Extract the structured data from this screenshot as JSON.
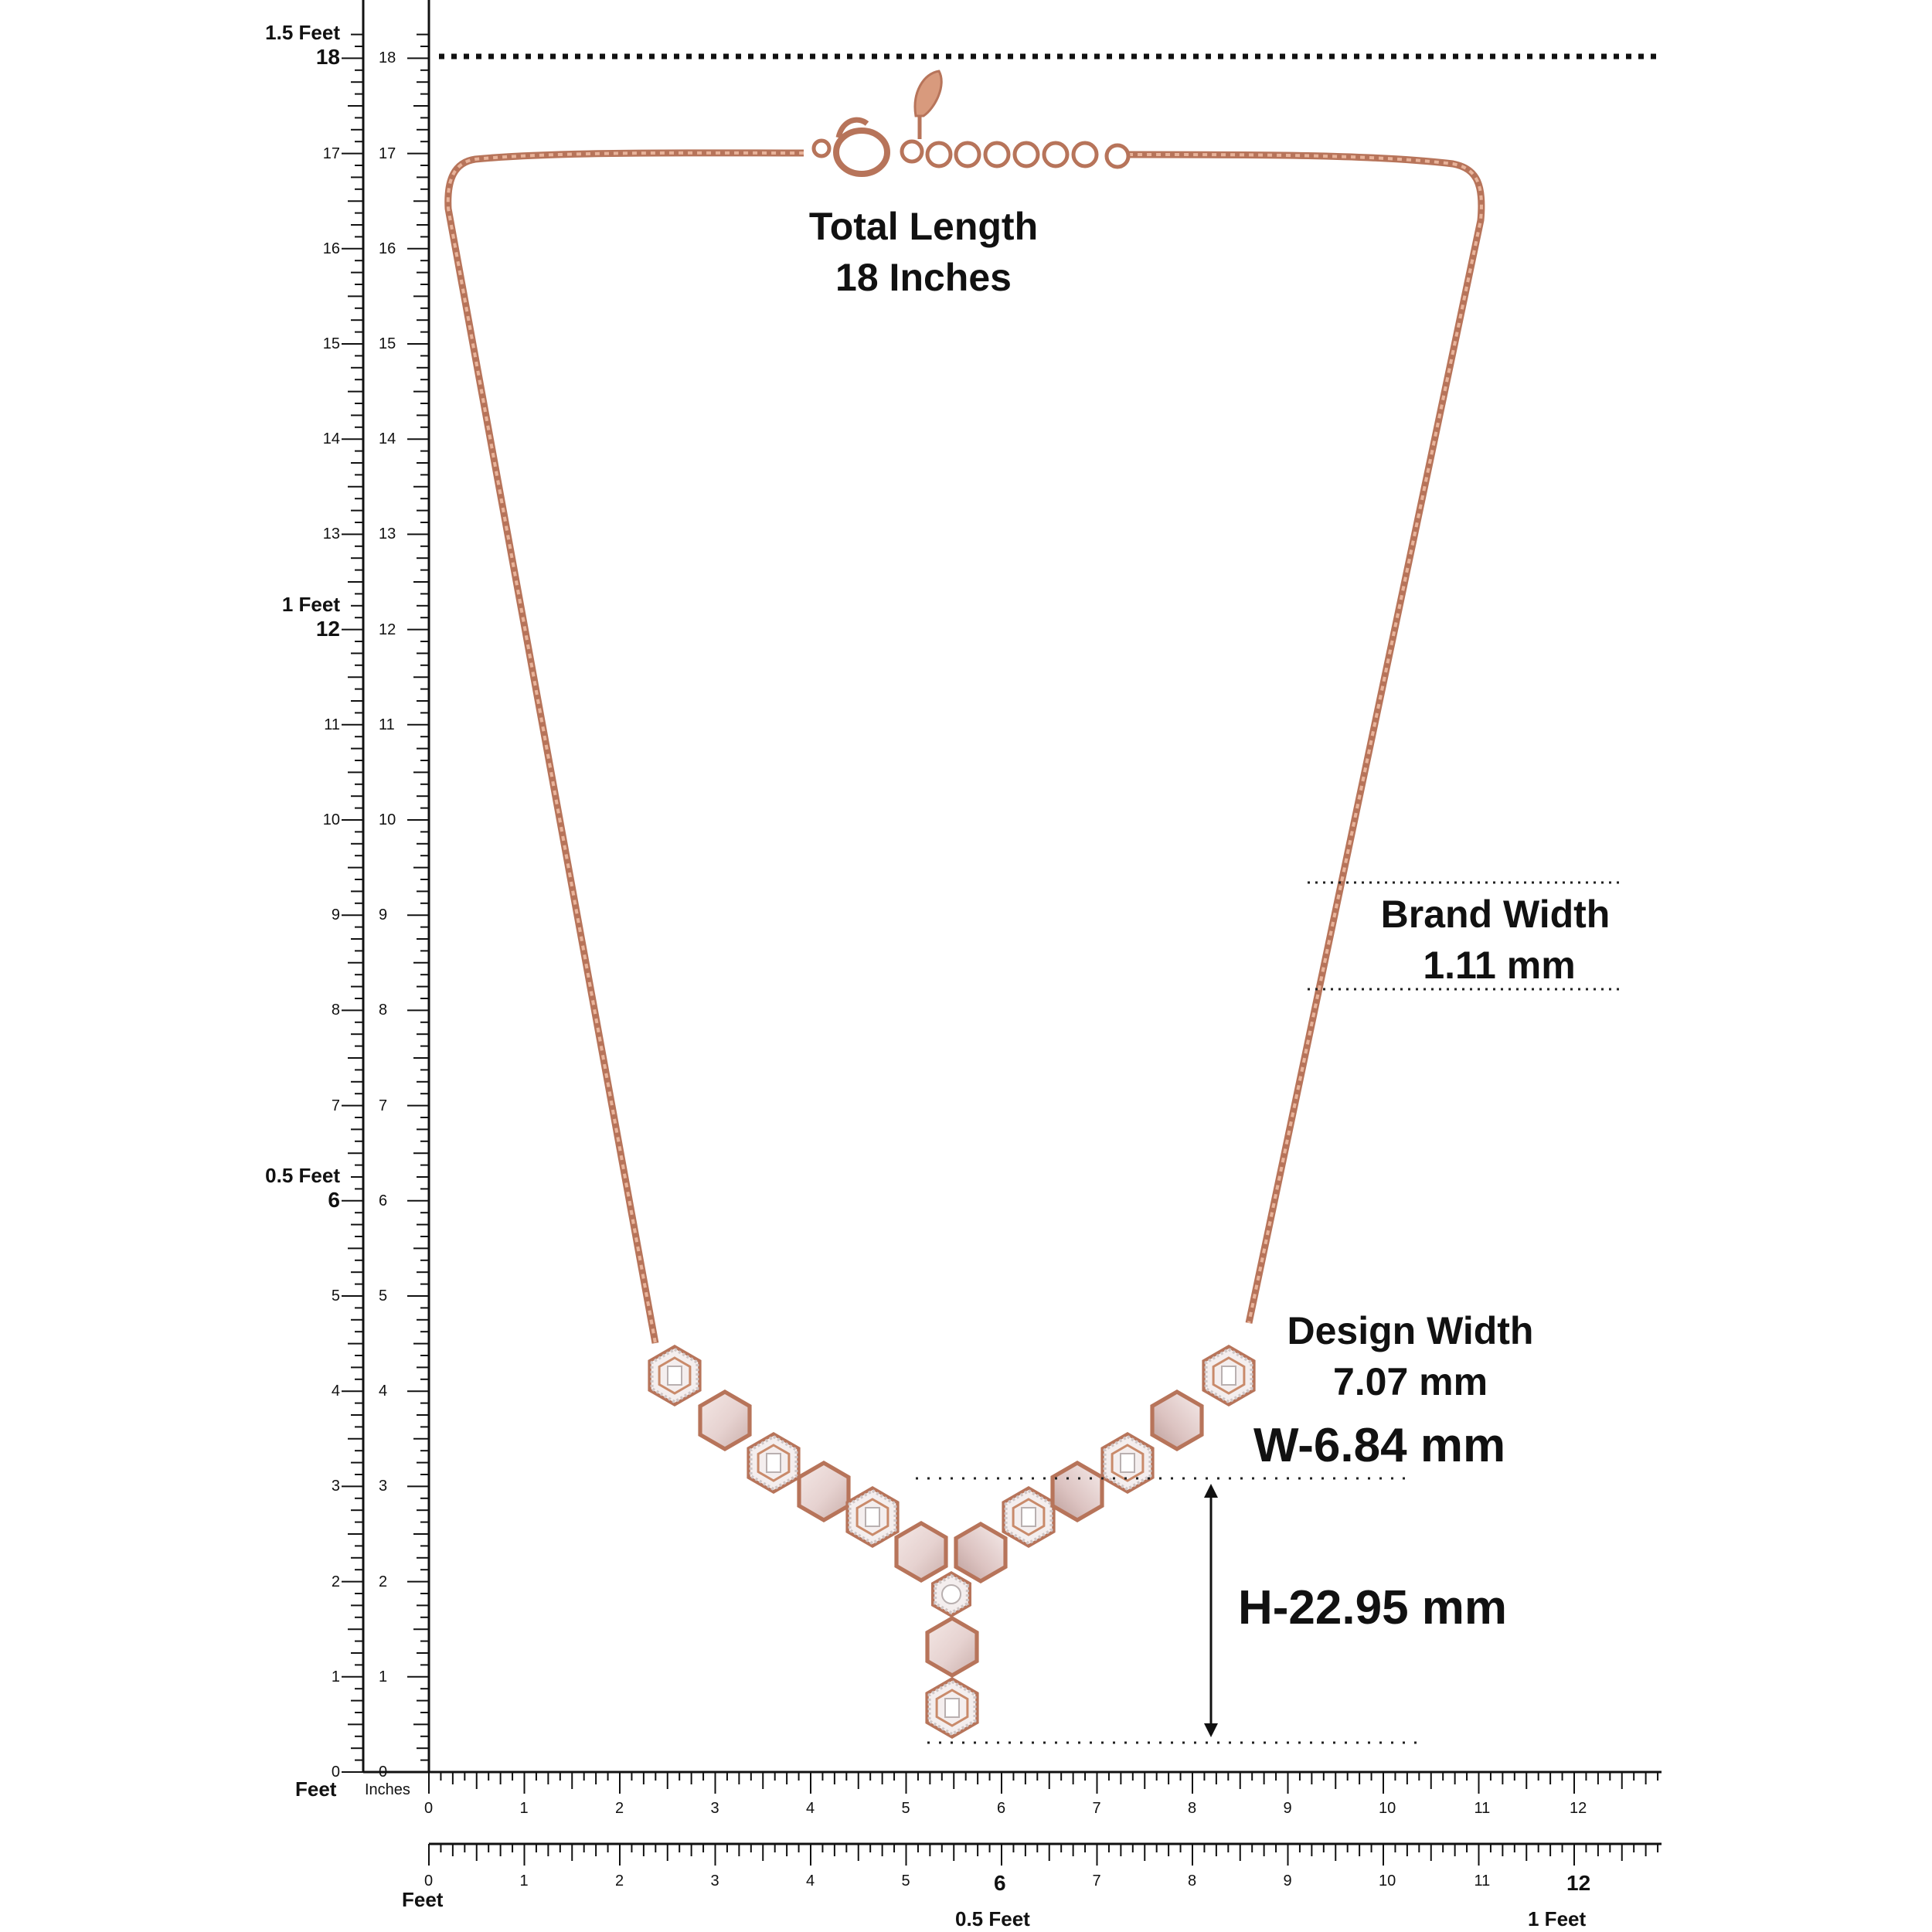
{
  "annotations": {
    "total_length": {
      "line1": "Total Length",
      "line2": "18 Inches"
    },
    "brand_width": {
      "line1": "Brand Width",
      "line2": "1.11 mm"
    },
    "design_width": {
      "line1": "Design Width",
      "line2": "7.07 mm"
    },
    "pendant_width": "W-6.84 mm",
    "pendant_height": "H-22.95 mm"
  },
  "vertical_ruler": {
    "feet_unit": "Feet",
    "inches_unit": "Inches",
    "marks": [
      "0",
      "1",
      "2",
      "3",
      "4",
      "5",
      "6",
      "7",
      "8",
      "9",
      "10",
      "11",
      "12",
      "13",
      "14",
      "15",
      "16",
      "17",
      "18"
    ],
    "feet_markers": [
      {
        "label": "0.5 Feet",
        "inch": "6"
      },
      {
        "label": "1 Feet",
        "inch": "12"
      },
      {
        "label": "1.5 Feet",
        "inch": "18"
      }
    ]
  },
  "horizontal_ruler": {
    "marks": [
      "0",
      "1",
      "2",
      "3",
      "4",
      "5",
      "6",
      "7",
      "8",
      "9",
      "10",
      "11",
      "12"
    ],
    "feet_unit": "Feet",
    "feet_markers": [
      {
        "label": "0.5 Feet",
        "inch": "6"
      },
      {
        "label": "1 Feet",
        "inch": "12"
      }
    ]
  },
  "colors": {
    "rose_gold": "#c98a6a",
    "rose_gold_dark": "#a9694a",
    "pearl": "#ead8d6",
    "text": "#111111"
  }
}
